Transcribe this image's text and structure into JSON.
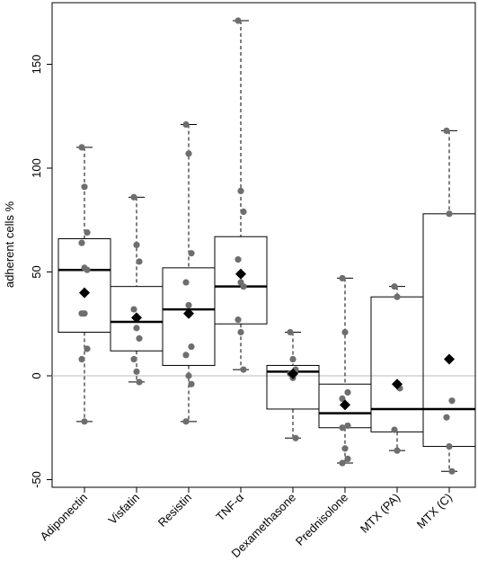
{
  "chart_data": {
    "type": "boxplot",
    "ylabel": "adherent cells %",
    "xlabel": "",
    "ylim": [
      -55,
      178
    ],
    "yticks": [
      -50,
      0,
      50,
      100,
      150
    ],
    "reference_line": 0,
    "grid": false,
    "colors": {
      "point": "#6e6e6e",
      "mean": "#000000",
      "box": "#000000",
      "reference": "#bbbbbb"
    },
    "categories": [
      "Adiponectin",
      "Visfatin",
      "Resistin",
      "TNF-α",
      "Dexamethasone",
      "Prednisolone",
      "MTX (PA)",
      "MTX (C)"
    ],
    "groups": [
      {
        "name": "Adiponectin",
        "min": -22,
        "q1": 21,
        "median": 51,
        "q3": 66,
        "max": 110,
        "mean": 40,
        "points": [
          110,
          91,
          69,
          64,
          52,
          51,
          30,
          30,
          13,
          8,
          -22
        ]
      },
      {
        "name": "Visfatin",
        "min": -3,
        "q1": 12,
        "median": 26,
        "q3": 43,
        "max": 86,
        "mean": 28,
        "points": [
          86,
          63,
          55,
          32,
          23,
          18,
          8,
          2,
          -3
        ]
      },
      {
        "name": "Resistin",
        "min": -22,
        "q1": 5,
        "median": 32,
        "q3": 52,
        "max": 121,
        "mean": 30,
        "points": [
          121,
          107,
          59,
          45,
          34,
          14,
          10,
          0,
          -4,
          -22
        ]
      },
      {
        "name": "TNF-α",
        "min": 3,
        "q1": 25,
        "median": 43,
        "q3": 67,
        "max": 171,
        "mean": 49,
        "points": [
          171,
          89,
          79,
          56,
          45,
          43,
          27,
          21,
          3
        ]
      },
      {
        "name": "Dexamethasone",
        "min": -30,
        "q1": -16,
        "median": 2,
        "q3": 5,
        "max": 21,
        "mean": 1,
        "points": [
          21,
          8,
          3,
          1,
          -1,
          -30
        ]
      },
      {
        "name": "Prednisolone",
        "min": -42,
        "q1": -25,
        "median": -18,
        "q3": -4,
        "max": 47,
        "mean": -14,
        "points": [
          47,
          21,
          -8,
          -11,
          -14,
          -24,
          -25,
          -35,
          -40,
          -42
        ]
      },
      {
        "name": "MTX (PA)",
        "min": -36,
        "q1": -27,
        "median": -16,
        "q3": 38,
        "max": 43,
        "mean": -4,
        "points": [
          43,
          38,
          -6,
          -26,
          -36
        ]
      },
      {
        "name": "MTX (C)",
        "min": -46,
        "q1": -34,
        "median": -16,
        "q3": 78,
        "max": 118,
        "mean": 8,
        "points": [
          118,
          78,
          -12,
          -20,
          -34,
          -46
        ]
      }
    ]
  }
}
